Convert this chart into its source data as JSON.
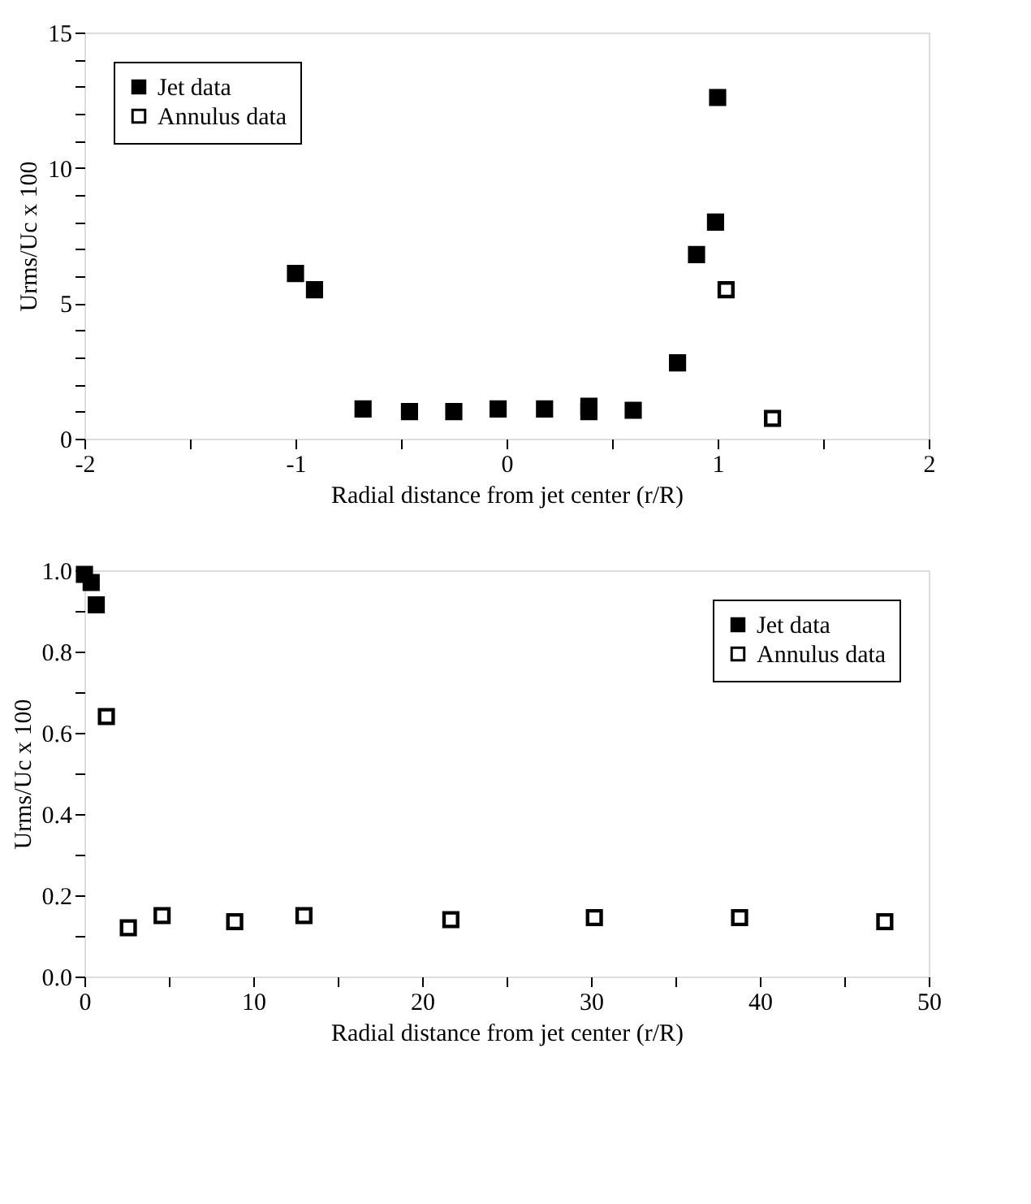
{
  "chart_data": [
    {
      "type": "scatter",
      "xlabel": "Radial distance from jet center (r/R)",
      "ylabel": "Urms/Uc x 100",
      "marker": "square",
      "legend": "top left",
      "grid": false,
      "xlim": [
        -2,
        2
      ],
      "ylim": [
        0,
        15
      ],
      "xticks": [
        -2,
        {
          "value": -1.5,
          "label": null
        },
        -1,
        {
          "value": -0.5,
          "label": null
        },
        0,
        {
          "value": 0.5,
          "label": null
        },
        1,
        {
          "value": 1.5,
          "label": null
        },
        2
      ],
      "yticks": [
        0,
        {
          "value": 1,
          "label": null
        },
        {
          "value": 2,
          "label": null
        },
        {
          "value": 3,
          "label": null
        },
        {
          "value": 4,
          "label": null
        },
        5,
        {
          "value": 6,
          "label": null
        },
        {
          "value": 7,
          "label": null
        },
        {
          "value": 8,
          "label": null
        },
        {
          "value": 9,
          "label": null
        },
        10,
        {
          "value": 11,
          "label": null
        },
        {
          "value": 12,
          "label": null
        },
        {
          "value": 13,
          "label": null
        },
        {
          "value": 14,
          "label": null
        },
        15
      ],
      "series": [
        {
          "name": "Jet data",
          "color": "#000000",
          "x": [
            -1.0,
            -0.91,
            -0.68,
            -0.46,
            -0.25,
            -0.04,
            0.18,
            0.39,
            0.39,
            0.6,
            0.81,
            0.9,
            0.99,
            1.0
          ],
          "values": [
            6.1,
            5.5,
            1.1,
            1.0,
            1.0,
            1.1,
            1.1,
            1.2,
            1.0,
            1.05,
            2.8,
            6.8,
            8.0,
            12.6
          ]
        },
        {
          "name": "Annulus data",
          "color": "#000000",
          "x": [
            1.04,
            1.26
          ],
          "values": [
            5.5,
            0.75
          ]
        }
      ]
    },
    {
      "type": "scatter",
      "xlabel": "Radial distance from jet center (r/R)",
      "ylabel": "Urms/Uc x 100",
      "marker": "square",
      "legend": "top right",
      "grid": false,
      "xlim": [
        0,
        50
      ],
      "ylim": [
        0,
        1
      ],
      "xticks": [
        0,
        {
          "value": 5,
          "label": null
        },
        10,
        {
          "value": 15,
          "label": null
        },
        20,
        {
          "value": 25,
          "label": null
        },
        30,
        {
          "value": 35,
          "label": null
        },
        40,
        {
          "value": 45,
          "label": null
        },
        50
      ],
      "yticks": [
        {
          "value": 0,
          "label": "0.0"
        },
        {
          "value": 0.1,
          "label": null
        },
        0.2,
        {
          "value": 0.3,
          "label": null
        },
        0.4,
        {
          "value": 0.5,
          "label": null
        },
        0.6,
        {
          "value": 0.7,
          "label": null
        },
        0.8,
        {
          "value": 0.9,
          "label": null
        },
        {
          "value": 1,
          "label": "1.0"
        }
      ],
      "series": [
        {
          "name": "Jet data",
          "color": "#000000",
          "x": [
            0,
            0.4,
            0.7
          ],
          "values": [
            0.99,
            0.97,
            0.915
          ]
        },
        {
          "name": "Annulus data",
          "color": "#000000",
          "x": [
            1.3,
            2.6,
            4.6,
            8.9,
            13,
            21.7,
            30.2,
            38.8,
            47.4
          ],
          "values": [
            0.64,
            0.12,
            0.15,
            0.135,
            0.15,
            0.14,
            0.145,
            0.145,
            0.135
          ]
        }
      ]
    }
  ]
}
